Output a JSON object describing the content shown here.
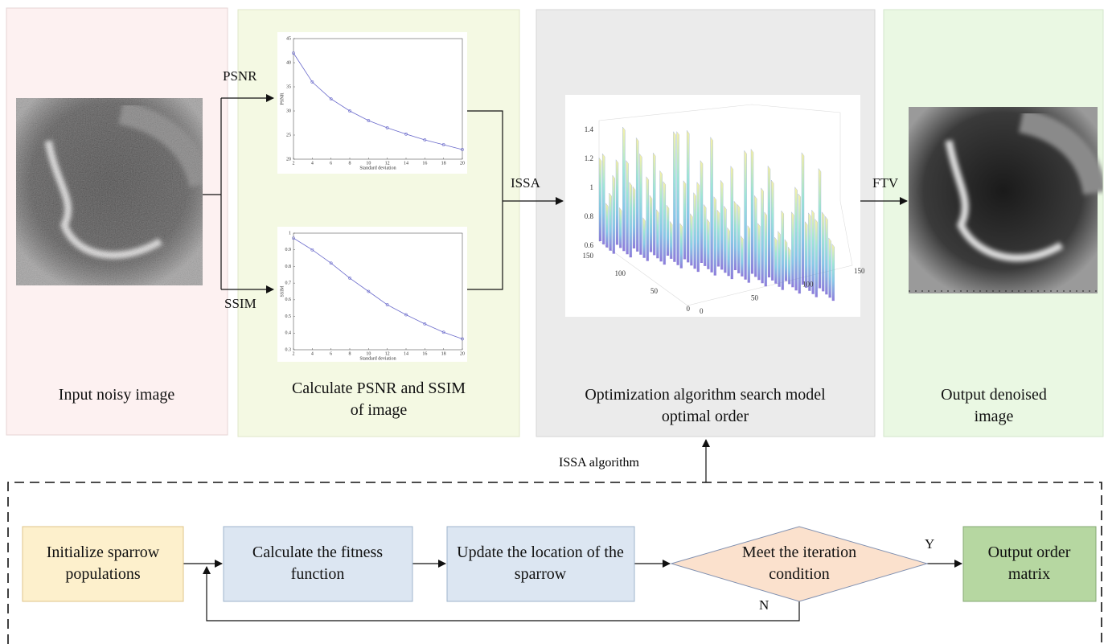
{
  "panels": [
    {
      "label": "Input noisy image"
    },
    {
      "label": "Calculate PSNR and SSIM of image"
    },
    {
      "label": "Optimization algorithm search model optimal order"
    },
    {
      "label": "Output denoised image"
    }
  ],
  "arrow_labels": {
    "psnr": "PSNR",
    "ssim": "SSIM",
    "issa": "ISSA",
    "ftv": "FTV",
    "issa_algorithm": "ISSA algorithm",
    "yes": "Y",
    "no": "N"
  },
  "psnr_chart": {
    "type": "line",
    "x": [
      2,
      4,
      6,
      8,
      10,
      12,
      14,
      16,
      18,
      20
    ],
    "values": [
      42,
      36,
      32.5,
      30,
      28,
      26.5,
      25.2,
      24,
      23,
      22
    ],
    "xlabel": "Standard deviation",
    "ylabel": "PSNR",
    "xlim": [
      2,
      20
    ],
    "ylim": [
      20,
      45
    ],
    "xticks": [
      2,
      4,
      6,
      8,
      10,
      12,
      14,
      16,
      18,
      20
    ],
    "yticks": [
      20,
      25,
      30,
      35,
      40,
      45
    ],
    "color": "#6a6acb"
  },
  "ssim_chart": {
    "type": "line",
    "x": [
      2,
      4,
      6,
      8,
      10,
      12,
      14,
      16,
      18,
      20
    ],
    "values": [
      0.97,
      0.9,
      0.82,
      0.73,
      0.65,
      0.57,
      0.51,
      0.455,
      0.405,
      0.365
    ],
    "xlabel": "Standard deviation",
    "ylabel": "SSIM",
    "xlim": [
      2,
      20
    ],
    "ylim": [
      0.3,
      1
    ],
    "xticks": [
      2,
      4,
      6,
      8,
      10,
      12,
      14,
      16,
      18,
      20
    ],
    "yticks": [
      0.3,
      0.4,
      0.5,
      0.6,
      0.7,
      0.8,
      0.9,
      1
    ],
    "color": "#6a6acb"
  },
  "surface_chart": {
    "type": "surface",
    "xlim": [
      0,
      150
    ],
    "ylim": [
      0,
      150
    ],
    "zlim": [
      0.6,
      1.4
    ],
    "xticks": [
      0,
      50,
      100,
      150
    ],
    "yticks": [
      0,
      50,
      100,
      150
    ],
    "zticks": [
      0.6,
      0.8,
      1,
      1.2,
      1.4
    ]
  },
  "flow": {
    "nodes": [
      {
        "label": "Initialize sparrow populations"
      },
      {
        "label": "Calculate the fitness function"
      },
      {
        "label": "Update the location of the sparrow"
      },
      {
        "label": "Meet the iteration condition"
      },
      {
        "label": "Output order matrix"
      }
    ]
  }
}
